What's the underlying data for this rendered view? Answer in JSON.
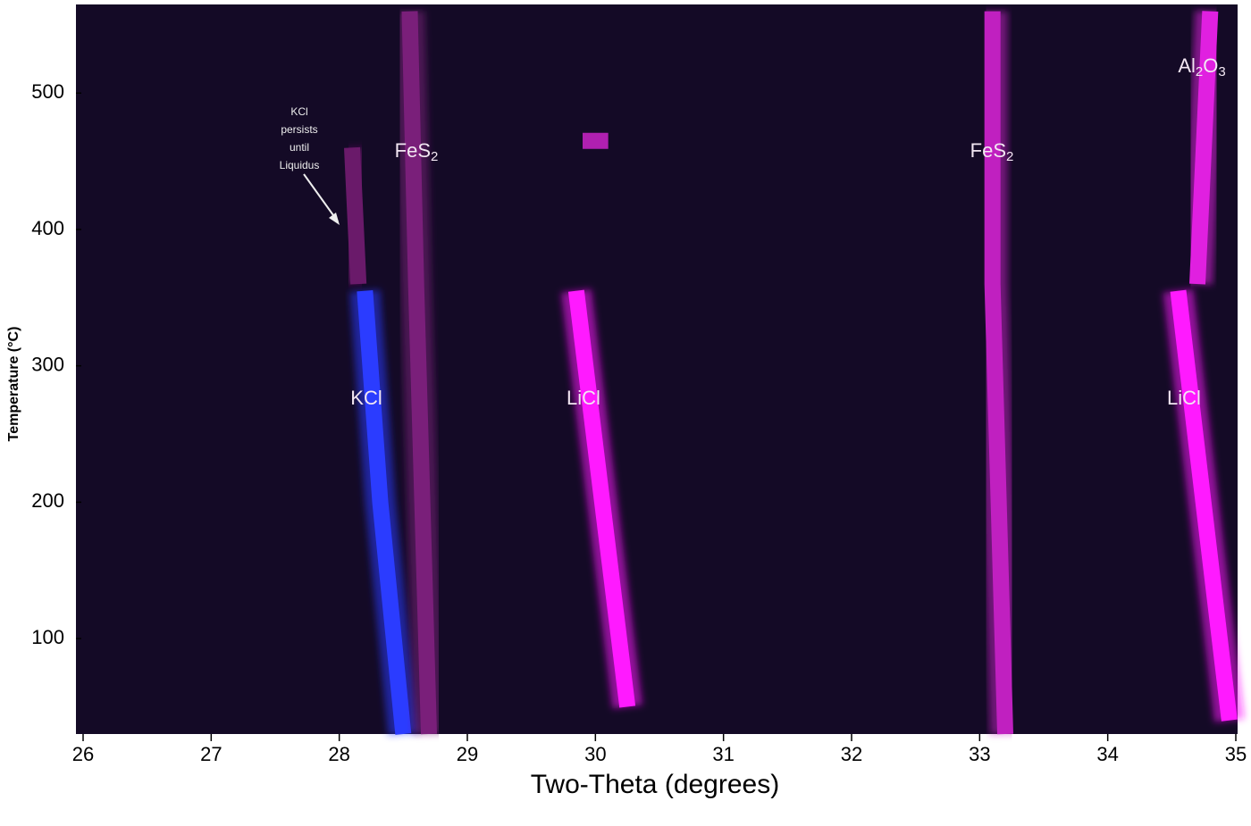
{
  "chart_data": {
    "type": "trace",
    "xlabel": "Two-Theta (degrees)",
    "ylabel": "Temperature (°C)",
    "xlim": [
      26,
      35
    ],
    "xticks": [
      26,
      27,
      28,
      29,
      30,
      31,
      32,
      33,
      34,
      35
    ],
    "ylim": [
      30,
      565
    ],
    "yticks": [
      100,
      200,
      300,
      400,
      500
    ],
    "series": [
      {
        "label": [
          {
            "text": "KCl"
          }
        ],
        "color": "#2b3cff",
        "x": [
          28.2,
          28.32,
          28.5
        ],
        "values": [
          355,
          200,
          30
        ]
      },
      {
        "color": "#6a1a6a",
        "x": [
          28.1,
          28.15
        ],
        "values": [
          460,
          360
        ]
      },
      {
        "label": [
          {
            "text": "FeS"
          },
          {
            "text": "2",
            "sub": true
          }
        ],
        "color": "#7a1f7a",
        "x": [
          28.55,
          28.6,
          28.7
        ],
        "values": [
          560,
          360,
          30
        ]
      },
      {
        "label": [
          {
            "text": "LiCl"
          }
        ],
        "color": "#ff1aff",
        "x": [
          29.85,
          30.25
        ],
        "values": [
          355,
          50
        ]
      },
      {
        "color": "#b020b0",
        "x": [
          29.9,
          30.1
        ],
        "values": [
          465,
          465
        ]
      },
      {
        "label": [
          {
            "text": "FeS"
          },
          {
            "text": "2",
            "sub": true
          }
        ],
        "color": "#c020c0",
        "x": [
          33.1,
          33.1,
          33.2
        ],
        "values": [
          560,
          360,
          30
        ]
      },
      {
        "label": [
          {
            "text": "LiCl"
          }
        ],
        "color": "#ff1aff",
        "x": [
          34.55,
          34.95
        ],
        "values": [
          355,
          40
        ]
      },
      {
        "label": [
          {
            "text": "Al"
          },
          {
            "text": "2",
            "sub": true
          },
          {
            "text": "O"
          },
          {
            "text": "3",
            "sub": true
          }
        ],
        "color": "#e020e0",
        "x": [
          34.8,
          34.7
        ],
        "values": [
          560,
          360
        ]
      }
    ],
    "annotation": [
      "KCl",
      "persists",
      "until",
      "Liquidus"
    ]
  }
}
